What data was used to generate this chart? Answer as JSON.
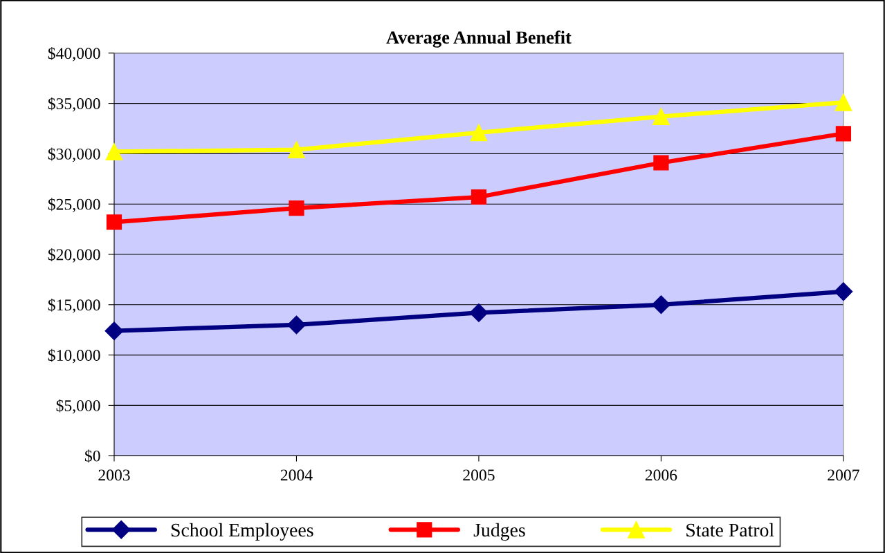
{
  "chart_data": {
    "type": "line",
    "title": "Average Annual Benefit",
    "categories": [
      "2003",
      "2004",
      "2005",
      "2006",
      "2007"
    ],
    "series": [
      {
        "name": "School Employees",
        "color": "#000080",
        "marker": "diamond",
        "values": [
          12400,
          13000,
          14200,
          15000,
          16300
        ]
      },
      {
        "name": "Judges",
        "color": "#ff0000",
        "marker": "square",
        "values": [
          23200,
          24600,
          25700,
          29100,
          32000
        ]
      },
      {
        "name": "State Patrol",
        "color": "#ffff00",
        "marker": "triangle",
        "values": [
          30200,
          30400,
          32100,
          33700,
          35100
        ]
      }
    ],
    "ylim": [
      0,
      40000
    ],
    "yticks": [
      {
        "value": 0,
        "label": "$0"
      },
      {
        "value": 5000,
        "label": "$5,000"
      },
      {
        "value": 10000,
        "label": "$10,000"
      },
      {
        "value": 15000,
        "label": "$15,000"
      },
      {
        "value": 20000,
        "label": "$20,000"
      },
      {
        "value": 25000,
        "label": "$25,000"
      },
      {
        "value": 30000,
        "label": "$30,000"
      },
      {
        "value": 35000,
        "label": "$35,000"
      },
      {
        "value": 40000,
        "label": "$40,000"
      }
    ],
    "grid": "y",
    "legend": "bottom",
    "line_style": "solid"
  }
}
